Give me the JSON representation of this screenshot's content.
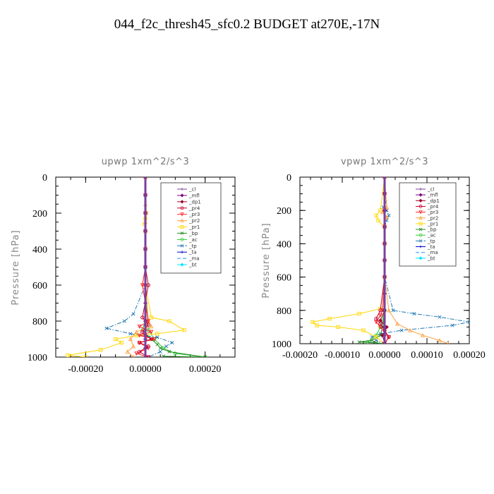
{
  "title": "044_f2c_thresh45_sfc0.2  BUDGET at270E,-17N",
  "chart_data": [
    {
      "type": "line",
      "subtitle": "upwp   1xm^2/s^3",
      "ylabel": "Pressure [hPa]",
      "xlabel": "",
      "xlim": [
        -0.0003,
        0.0003
      ],
      "ylim": [
        1000,
        0
      ],
      "xticks": [
        -0.0002,
        0.0,
        0.0002
      ],
      "xtick_labels": [
        "-0.00020",
        "0.00000",
        "0.00020"
      ],
      "yticks": [
        0,
        200,
        400,
        600,
        800,
        1000
      ],
      "ytick_labels": [
        "0",
        "200",
        "400",
        "600",
        "800",
        "1000"
      ],
      "legend_position": "top-right",
      "series": [
        {
          "name": "_cl",
          "color": "#7b3f9e",
          "marker": "+",
          "dash": "solid",
          "x": [
            0,
            0,
            0,
            0,
            0,
            0,
            0,
            0,
            0,
            0,
            0,
            0
          ],
          "y": [
            0,
            100,
            200,
            300,
            400,
            500,
            600,
            700,
            800,
            900,
            950,
            1000
          ]
        },
        {
          "name": "_mfl",
          "color": "#800080",
          "marker": "diamond",
          "dash": "solid",
          "x": [
            0,
            0,
            0,
            0,
            0,
            0,
            0,
            0,
            0,
            0,
            0,
            0
          ],
          "y": [
            0,
            100,
            200,
            300,
            400,
            500,
            600,
            700,
            800,
            900,
            950,
            1000
          ]
        },
        {
          "name": "_dp1",
          "color": "#a0002a",
          "marker": "diamond",
          "dash": "solid",
          "x": [
            0,
            0,
            0,
            0,
            0,
            0,
            0,
            0,
            0,
            0,
            0,
            0
          ],
          "y": [
            0,
            100,
            200,
            300,
            400,
            500,
            600,
            700,
            800,
            900,
            950,
            1000
          ]
        },
        {
          "name": "_pr4",
          "color": "#c0002a",
          "marker": "circle",
          "dash": "solid",
          "x": [
            0,
            0,
            0,
            0,
            0,
            0,
            1e-05,
            -1e-05,
            1e-05,
            -1e-05,
            0,
            2e-05,
            -2e-05,
            1e-05,
            -2e-05,
            1e-05
          ],
          "y": [
            0,
            100,
            200,
            300,
            400,
            500,
            600,
            780,
            820,
            860,
            880,
            900,
            920,
            940,
            970,
            1000
          ]
        },
        {
          "name": "_pr3",
          "color": "#ff2020",
          "marker": "triangle-down",
          "dash": "solid",
          "x": [
            0,
            0,
            0,
            0,
            0,
            0,
            -1e-05,
            1e-05,
            -2e-05,
            2e-05,
            -2e-05,
            3e-05,
            -2e-05,
            1e-05,
            -3e-05,
            1e-05
          ],
          "y": [
            0,
            100,
            200,
            300,
            400,
            500,
            600,
            800,
            830,
            860,
            880,
            900,
            920,
            950,
            980,
            1000
          ]
        },
        {
          "name": "_pr2",
          "color": "#ffa040",
          "marker": "triangle",
          "dash": "solid",
          "x": [
            0,
            0,
            2e-06,
            0,
            0,
            0,
            0,
            1e-05,
            2e-05,
            -3e-05,
            -5e-05,
            -4e-05,
            -6e-05,
            -4e-05
          ],
          "y": [
            0,
            150,
            200,
            250,
            300,
            400,
            600,
            800,
            830,
            860,
            900,
            940,
            970,
            1000
          ]
        },
        {
          "name": "_pr1",
          "color": "#ffd700",
          "marker": "square",
          "dash": "solid",
          "x": [
            0,
            3e-06,
            0,
            -3e-06,
            0,
            0,
            0,
            2e-05,
            8e-05,
            0.00013,
            4e-05,
            -3e-05,
            -0.0001,
            -8e-05,
            -0.00015,
            -0.00026,
            -0.0002
          ],
          "y": [
            0,
            200,
            230,
            260,
            300,
            400,
            600,
            780,
            800,
            850,
            870,
            880,
            900,
            920,
            960,
            990,
            1000
          ]
        },
        {
          "name": "_bp",
          "color": "#228b22",
          "marker": "x",
          "dash": "solid",
          "x": [
            0,
            0,
            0,
            0,
            0,
            0,
            0,
            0,
            -1e-05,
            2e-05,
            4e-05,
            5e-05,
            8e-05,
            0.0002,
            6e-05
          ],
          "y": [
            0,
            100,
            200,
            300,
            400,
            500,
            600,
            800,
            850,
            900,
            930,
            950,
            970,
            1000,
            995
          ]
        },
        {
          "name": "_ac",
          "color": "#32cd32",
          "marker": "circle",
          "dash": "solid",
          "x": [
            0,
            0,
            0,
            0,
            0,
            0,
            0,
            1e-05,
            3e-05,
            6e-05,
            0.0001,
            0.0002
          ],
          "y": [
            0,
            100,
            200,
            300,
            400,
            500,
            600,
            850,
            900,
            950,
            980,
            1000
          ]
        },
        {
          "name": "_tp",
          "color": "#1f77b4",
          "marker": "x",
          "dash": "dashdot",
          "x": [
            0,
            0,
            0,
            0,
            0,
            0,
            0,
            -4e-05,
            -7e-05,
            -0.00013,
            -5e-05,
            4e-05,
            9e-05,
            7e-05,
            5e-05,
            1e-05
          ],
          "y": [
            0,
            100,
            200,
            300,
            400,
            500,
            600,
            760,
            800,
            840,
            870,
            890,
            920,
            940,
            970,
            1000
          ]
        },
        {
          "name": "_ta",
          "color": "#0000cd",
          "marker": "+",
          "dash": "solid",
          "x": [
            0,
            0,
            0,
            0,
            0,
            0,
            0,
            0,
            0,
            0,
            0,
            0
          ],
          "y": [
            0,
            100,
            200,
            300,
            400,
            500,
            600,
            700,
            800,
            900,
            950,
            1000
          ]
        },
        {
          "name": "_ma",
          "color": "#1e90ff",
          "marker": "none",
          "dash": "dash",
          "x": [
            0,
            0,
            0,
            0,
            0,
            0,
            0,
            0,
            0,
            0,
            0,
            0
          ],
          "y": [
            0,
            100,
            200,
            300,
            400,
            500,
            600,
            700,
            800,
            900,
            950,
            1000
          ]
        },
        {
          "name": "_bt",
          "color": "#00e5ff",
          "marker": "diamond",
          "dash": "solid",
          "x": [
            0,
            0,
            0,
            0,
            0,
            0,
            0,
            0,
            0,
            0,
            0,
            0
          ],
          "y": [
            0,
            100,
            200,
            300,
            400,
            500,
            600,
            700,
            800,
            900,
            950,
            1000
          ]
        }
      ]
    },
    {
      "type": "line",
      "subtitle": "vpwp   1xm^2/s^3",
      "ylabel": "Pressure [hPa]",
      "xlabel": "",
      "xlim": [
        -0.0002,
        0.0002
      ],
      "ylim": [
        1000,
        0
      ],
      "xticks": [
        -0.0002,
        -0.0001,
        0.0,
        0.0001,
        0.0002
      ],
      "xtick_labels": [
        "-0.00020",
        "-0.00010",
        "0.00000",
        "0.00010",
        "0.00020"
      ],
      "yticks": [
        0,
        200,
        400,
        600,
        800,
        1000
      ],
      "ytick_labels": [
        "0",
        "200",
        "400",
        "600",
        "800",
        "1000"
      ],
      "legend_position": "top-right",
      "series": [
        {
          "name": "_cl",
          "color": "#7b3f9e",
          "marker": "+",
          "dash": "solid",
          "x": [
            0,
            0,
            0,
            0,
            0,
            0,
            0,
            0,
            0,
            0,
            0,
            0
          ],
          "y": [
            0,
            100,
            200,
            300,
            400,
            500,
            600,
            700,
            800,
            900,
            950,
            1000
          ]
        },
        {
          "name": "_mfl",
          "color": "#800080",
          "marker": "diamond",
          "dash": "solid",
          "x": [
            0,
            0,
            0,
            0,
            0,
            0,
            0,
            0,
            0,
            0,
            0,
            0
          ],
          "y": [
            0,
            100,
            200,
            300,
            400,
            500,
            600,
            700,
            800,
            900,
            950,
            1000
          ]
        },
        {
          "name": "_dp1",
          "color": "#a0002a",
          "marker": "diamond",
          "dash": "solid",
          "x": [
            0,
            0,
            0,
            0,
            0,
            0,
            0,
            0,
            -1e-05,
            5e-06,
            -5e-06,
            0
          ],
          "y": [
            0,
            100,
            200,
            300,
            400,
            500,
            600,
            800,
            860,
            900,
            950,
            1000
          ]
        },
        {
          "name": "_pr4",
          "color": "#c0002a",
          "marker": "circle",
          "dash": "solid",
          "x": [
            0,
            0,
            0,
            0,
            0,
            0,
            0,
            -1e-05,
            -2e-05,
            -1e-05,
            0,
            1e-05,
            0
          ],
          "y": [
            0,
            100,
            200,
            300,
            400,
            500,
            600,
            800,
            850,
            880,
            920,
            960,
            1000
          ]
        },
        {
          "name": "_pr3",
          "color": "#ff2020",
          "marker": "triangle-down",
          "dash": "solid",
          "x": [
            0,
            0,
            0,
            0,
            0,
            0,
            0,
            -5e-06,
            -1e-05,
            -2e-05,
            -1e-05,
            0,
            1e-05,
            0
          ],
          "y": [
            0,
            100,
            200,
            300,
            400,
            500,
            600,
            800,
            830,
            870,
            900,
            930,
            960,
            1000
          ]
        },
        {
          "name": "_pr2",
          "color": "#ffa040",
          "marker": "triangle",
          "dash": "solid",
          "x": [
            0,
            5e-06,
            -5e-06,
            5e-06,
            0,
            0,
            0,
            1e-05,
            3e-05,
            6e-05,
            9e-05,
            0.00013,
            0.00015
          ],
          "y": [
            0,
            180,
            210,
            240,
            280,
            400,
            600,
            800,
            880,
            920,
            950,
            980,
            1000
          ]
        },
        {
          "name": "_pr1",
          "color": "#ffd700",
          "marker": "square",
          "dash": "solid",
          "x": [
            0,
            -1e-05,
            -2e-05,
            -1.5e-05,
            0,
            0,
            0,
            -1e-05,
            -6e-05,
            -0.00013,
            -0.00017,
            -0.00016,
            -0.00011,
            -5e-05,
            -2e-05,
            0
          ],
          "y": [
            0,
            200,
            230,
            260,
            300,
            400,
            600,
            790,
            820,
            850,
            870,
            890,
            900,
            920,
            960,
            1000
          ]
        },
        {
          "name": "_bp",
          "color": "#228b22",
          "marker": "x",
          "dash": "solid",
          "x": [
            0,
            0,
            0,
            0,
            0,
            0,
            0,
            0,
            -5e-06,
            -1e-05,
            -3e-05,
            -6e-05,
            -2e-05,
            0
          ],
          "y": [
            0,
            100,
            200,
            300,
            400,
            500,
            600,
            800,
            900,
            950,
            980,
            990,
            995,
            1000
          ]
        },
        {
          "name": "_ac",
          "color": "#32cd32",
          "marker": "circle",
          "dash": "solid",
          "x": [
            0,
            0,
            0,
            0,
            0,
            0,
            0,
            0,
            -1e-05,
            -2e-05,
            -4e-05,
            0
          ],
          "y": [
            0,
            100,
            200,
            300,
            400,
            500,
            600,
            800,
            900,
            950,
            990,
            1000
          ]
        },
        {
          "name": "_tp",
          "color": "#1f77b4",
          "marker": "x",
          "dash": "dashdot",
          "x": [
            0,
            2e-06,
            -3e-06,
            5e-06,
            1e-05,
            5e-06,
            0,
            0,
            2e-05,
            7e-05,
            0.00013,
            0.0002,
            0.00016,
            4e-05,
            -1e-05,
            -3e-05,
            -2e-05,
            0
          ],
          "y": [
            0,
            150,
            180,
            200,
            230,
            260,
            300,
            600,
            800,
            820,
            840,
            870,
            890,
            920,
            940,
            960,
            980,
            1000
          ]
        },
        {
          "name": "_ta",
          "color": "#0000cd",
          "marker": "+",
          "dash": "solid",
          "x": [
            0,
            0,
            0,
            0,
            0,
            0,
            0,
            0,
            0,
            0,
            0,
            0
          ],
          "y": [
            0,
            100,
            200,
            300,
            400,
            500,
            600,
            700,
            800,
            900,
            950,
            1000
          ]
        },
        {
          "name": "_ma",
          "color": "#1e90ff",
          "marker": "none",
          "dash": "dash",
          "x": [
            0,
            0,
            0,
            0,
            0,
            0,
            0,
            0,
            0,
            0,
            0,
            0
          ],
          "y": [
            0,
            100,
            200,
            300,
            400,
            500,
            600,
            700,
            800,
            900,
            950,
            1000
          ]
        },
        {
          "name": "_bt",
          "color": "#00e5ff",
          "marker": "diamond",
          "dash": "solid",
          "x": [
            0,
            0,
            0,
            0,
            0,
            0,
            0,
            0,
            0,
            0,
            0,
            0
          ],
          "y": [
            0,
            100,
            200,
            300,
            400,
            500,
            600,
            700,
            800,
            900,
            950,
            1000
          ]
        }
      ]
    }
  ]
}
